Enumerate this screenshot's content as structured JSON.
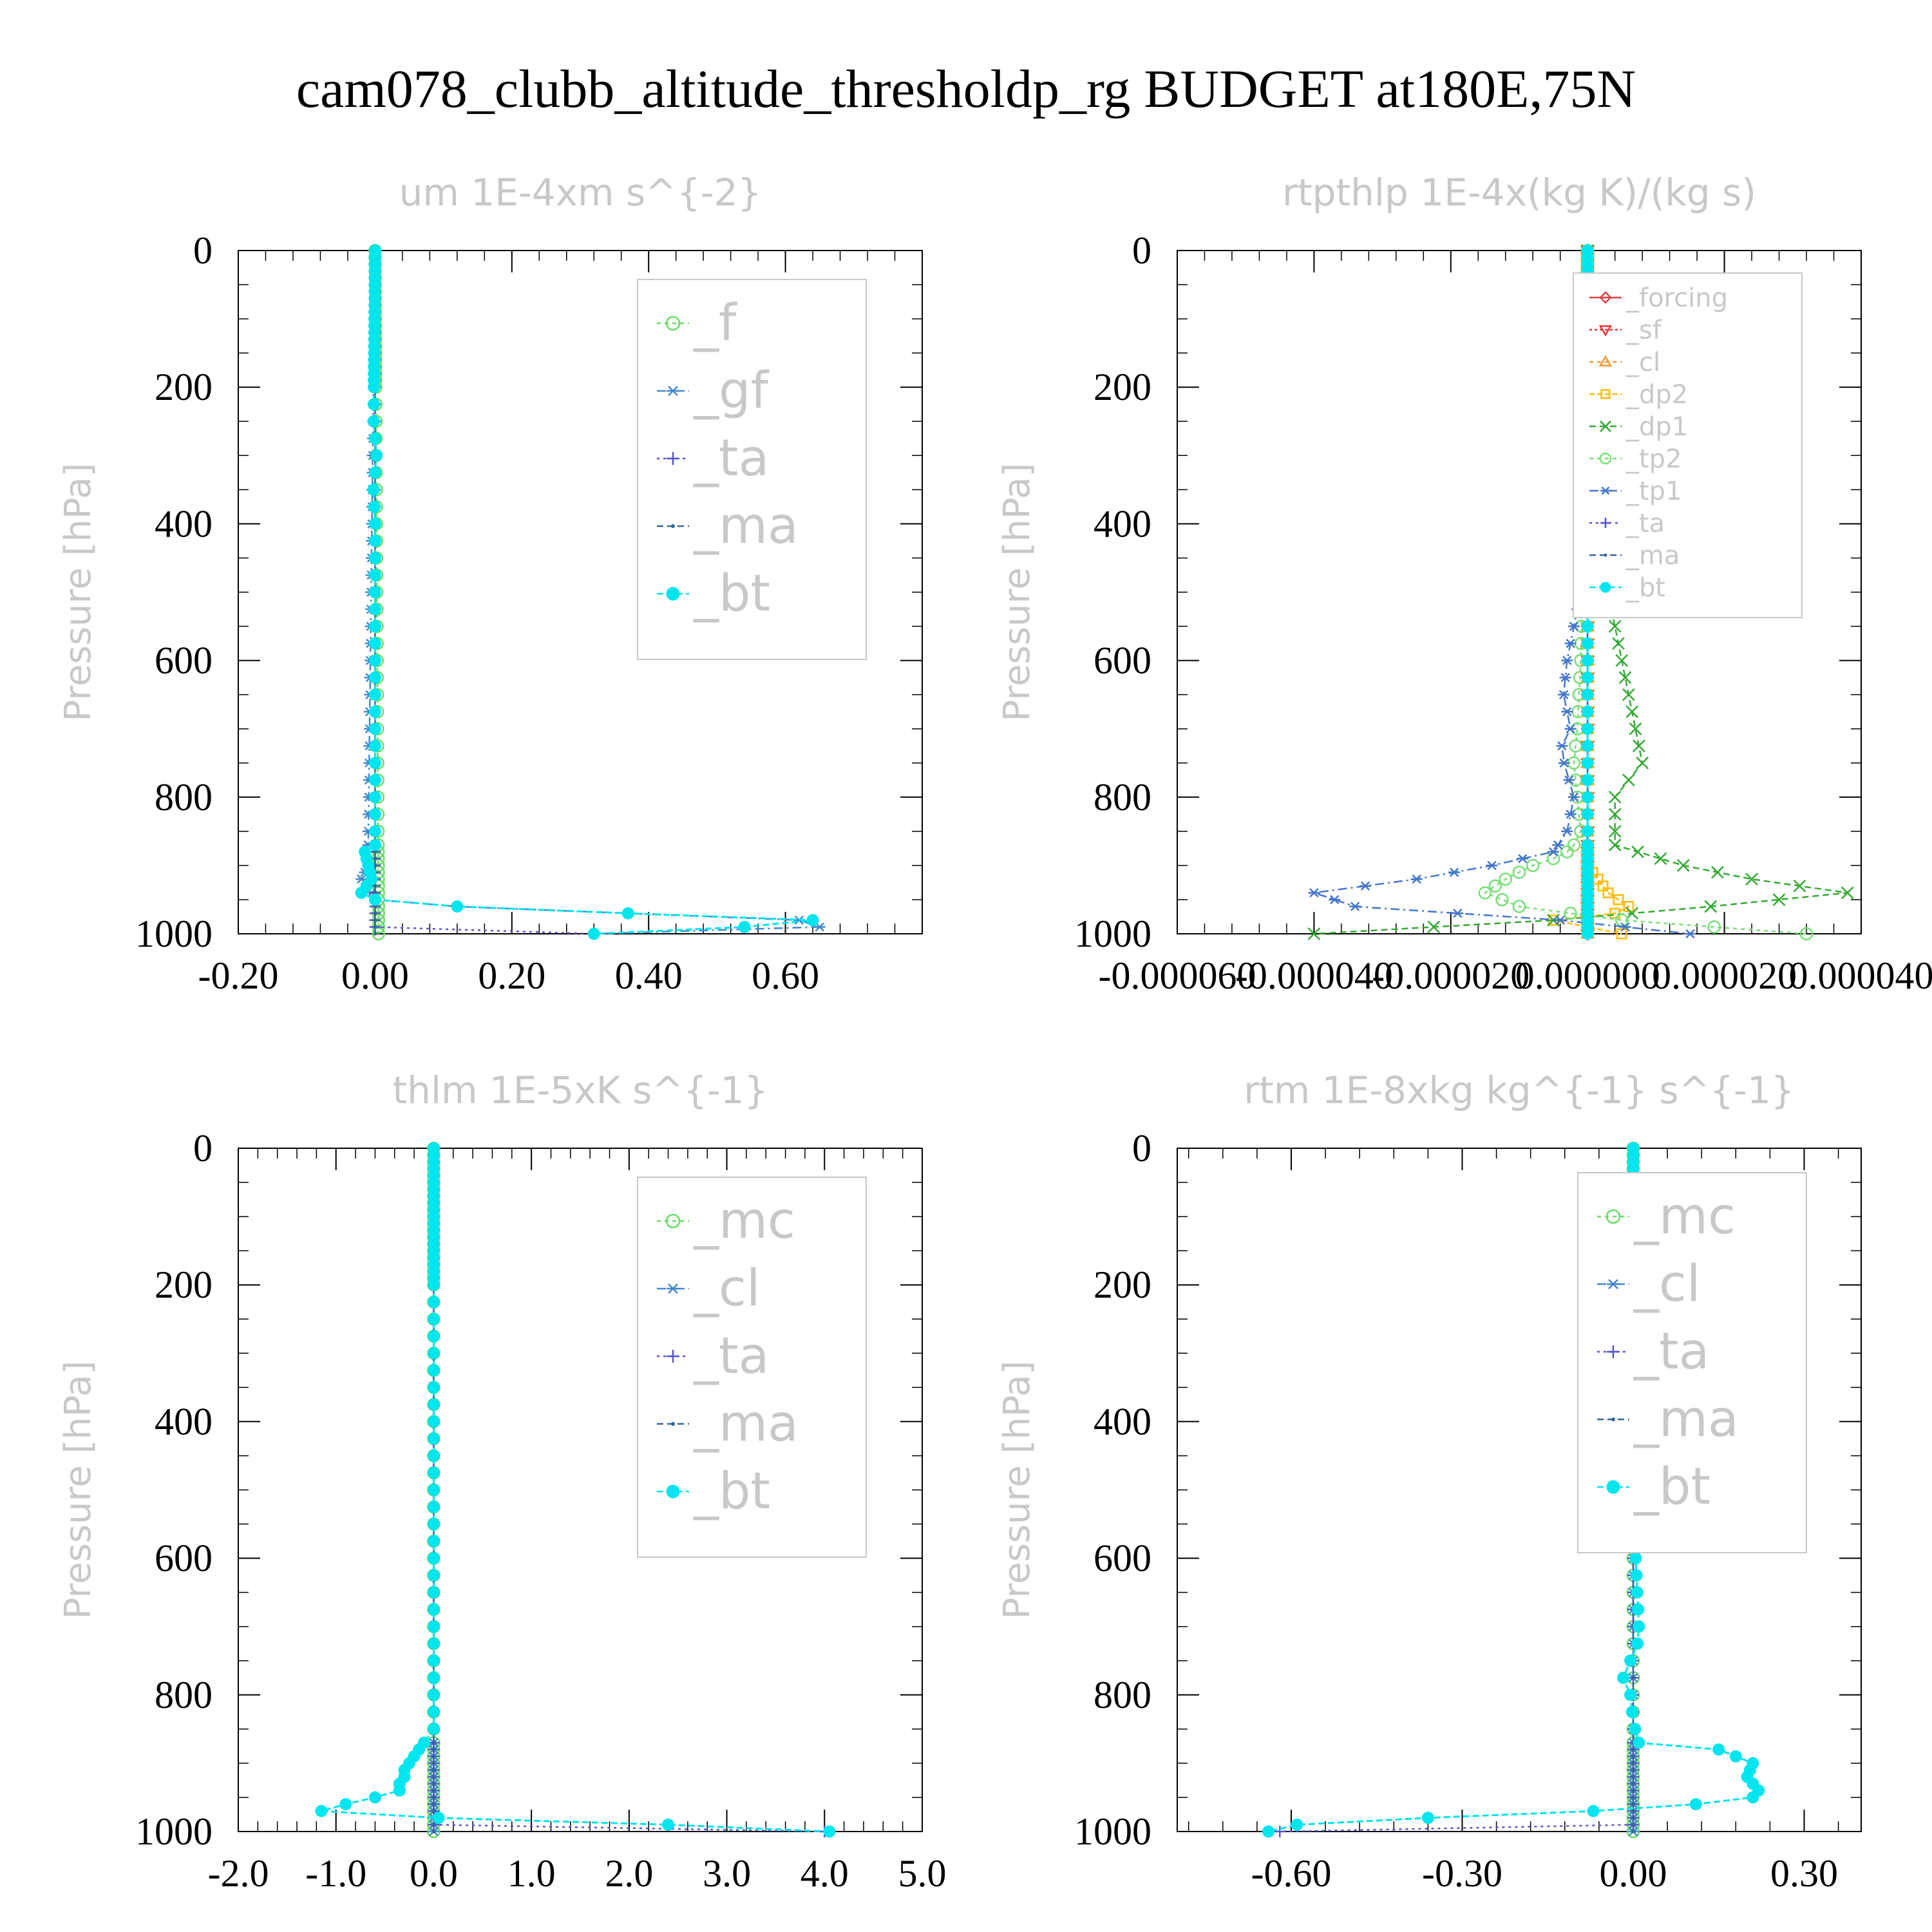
{
  "title": "cam078_clubb_altitude_thresholdp_rg  BUDGET at180E,75N",
  "chart_data": [
    {
      "type": "line",
      "title": "um  1E-4xm s^{-2}",
      "ylabel": "Pressure [hPa]",
      "ylim": [
        1000,
        0
      ],
      "yticks": [
        0,
        200,
        400,
        600,
        800,
        1000
      ],
      "yticklabels": [
        "0",
        "200",
        "400",
        "600",
        "800",
        "1000"
      ],
      "xlim": [
        -0.2,
        0.8
      ],
      "xticks": [
        -0.2,
        0.0,
        0.2,
        0.4,
        0.6
      ],
      "xticklabels": [
        "-0.20",
        "0.00",
        "0.20",
        "0.40",
        "0.60"
      ],
      "legend_placement": "top-right",
      "legend_size": "large",
      "series": [
        {
          "name": "_f",
          "color": "#66dd66",
          "marker": "circle",
          "dash": "6,6",
          "profile": {
            "p": [
              0,
              960,
              980,
              1000
            ],
            "x": [
              0,
              0.005,
              0.005,
              0.005
            ]
          }
        },
        {
          "name": "_gf",
          "color": "#4488cc",
          "marker": "asterisk",
          "dash": "14,6,3,6",
          "profile": {
            "p": [
              0,
              870,
              880,
              900,
              920,
              940,
              950,
              960,
              980,
              990,
              1000
            ],
            "x": [
              0,
              -0.01,
              -0.015,
              -0.01,
              -0.02,
              -0.005,
              0.0,
              0.12,
              0.62,
              0.65,
              0.32
            ]
          }
        },
        {
          "name": "_ta",
          "color": "#5555cc",
          "marker": "plus",
          "dash": "4,6",
          "profile": {
            "p": [
              0,
              990,
              1000
            ],
            "x": [
              0,
              0.0,
              0.32
            ]
          }
        },
        {
          "name": "_ma",
          "color": "#336699",
          "marker": "dot",
          "dash": "10,6",
          "profile": {
            "p": [
              0,
              960,
              1000
            ],
            "x": [
              0,
              0.0,
              0.0
            ]
          }
        },
        {
          "name": "_bt",
          "color": "#00e5ee",
          "marker": "bigdot",
          "dash": "10,5",
          "profile": {
            "p": [
              0,
              250,
              300,
              350,
              400,
              870,
              880,
              900,
              920,
              940,
              950,
              960,
              970,
              980,
              985,
              1000
            ],
            "x": [
              0,
              -0.002,
              0.002,
              -0.002,
              0.0,
              0.0,
              -0.015,
              -0.01,
              -0.005,
              -0.02,
              0.0,
              0.12,
              0.37,
              0.64,
              0.65,
              0.32
            ]
          }
        }
      ]
    },
    {
      "type": "line",
      "title": "rtpthlp  1E-4x(kg K)/(kg s)",
      "ylabel": "Pressure [hPa]",
      "ylim": [
        1000,
        0
      ],
      "yticks": [
        0,
        200,
        400,
        600,
        800,
        1000
      ],
      "yticklabels": [
        "0",
        "200",
        "400",
        "600",
        "800",
        "1000"
      ],
      "xlim": [
        -6e-05,
        4e-05
      ],
      "xticks": [
        -6e-05,
        -4e-05,
        -2e-05,
        0.0,
        2e-05,
        4e-05
      ],
      "xticklabels": [
        "-0.000060",
        "-0.000040",
        "-0.000020",
        "0.000000",
        "0.000020",
        "0.000040"
      ],
      "legend_placement": "top-right",
      "legend_size": "small",
      "series": [
        {
          "name": "_forcing",
          "color": "#dd4444",
          "marker": "diamond",
          "dash": "none",
          "profile": {
            "p": [
              0,
              1000
            ],
            "x": [
              0,
              0
            ]
          }
        },
        {
          "name": "_sf",
          "color": "#ee3333",
          "marker": "triangle-down",
          "dash": "4,4",
          "profile": {
            "p": [
              0,
              1000
            ],
            "x": [
              0,
              0
            ]
          }
        },
        {
          "name": "_cl",
          "color": "#ee9933",
          "marker": "triangle-up",
          "dash": "6,6",
          "profile": {
            "p": [
              0,
              1000
            ],
            "x": [
              0,
              0
            ]
          }
        },
        {
          "name": "_dp2",
          "color": "#ffbb00",
          "marker": "square",
          "dash": "8,4",
          "profile": {
            "p": [
              0,
              900,
              920,
              940,
              960,
              970,
              980,
              1000
            ],
            "x": [
              0,
              0.0,
              1.5e-06,
              3e-06,
              6e-06,
              4e-06,
              -5e-06,
              5e-06
            ]
          }
        },
        {
          "name": "_dp1",
          "color": "#33aa33",
          "marker": "x",
          "dash": "10,6",
          "profile": {
            "p": [
              0,
              300,
              400,
              500,
              600,
              700,
              750,
              800,
              870,
              900,
              920,
              940,
              960,
              980,
              1000
            ],
            "x": [
              0,
              0.0,
              1e-06,
              3e-06,
              5e-06,
              7e-06,
              8e-06,
              4e-06,
              4e-06,
              1.4e-05,
              2.4e-05,
              3.8e-05,
              1.8e-05,
              -5e-06,
              -4e-05
            ]
          }
        },
        {
          "name": "_tp2",
          "color": "#77dd77",
          "marker": "circle",
          "dash": "6,6",
          "profile": {
            "p": [
              0,
              600,
              700,
              750,
              800,
              850,
              870,
              880,
              890,
              900,
              920,
              940,
              960,
              980,
              1000
            ],
            "x": [
              0,
              -1e-06,
              -1.5e-06,
              -2e-06,
              -1.5e-06,
              -1e-06,
              -2e-06,
              -3e-06,
              -5e-06,
              -8e-06,
              -1.2e-05,
              -1.5e-05,
              -1e-05,
              5e-06,
              3.2e-05
            ]
          }
        },
        {
          "name": "_tp1",
          "color": "#4477cc",
          "marker": "asterisk",
          "dash": "14,6,3,6",
          "profile": {
            "p": [
              0,
              400,
              500,
              600,
              650,
              700,
              730,
              800,
              850,
              880,
              900,
              920,
              940,
              960,
              980,
              1000
            ],
            "x": [
              0,
              -5e-07,
              -1e-06,
              -3e-06,
              -3.5e-06,
              -2.5e-06,
              -4e-06,
              -2e-06,
              -3e-06,
              -5e-06,
              -1.4e-05,
              -2.5e-05,
              -4e-05,
              -3.4e-05,
              -4e-06,
              1.5e-05
            ]
          }
        },
        {
          "name": "_ta",
          "color": "#5555cc",
          "marker": "plus",
          "dash": "4,6",
          "profile": {
            "p": [
              0,
              1000
            ],
            "x": [
              0,
              0
            ]
          }
        },
        {
          "name": "_ma",
          "color": "#336699",
          "marker": "dot",
          "dash": "10,6",
          "profile": {
            "p": [
              0,
              1000
            ],
            "x": [
              0,
              0
            ]
          }
        },
        {
          "name": "_bt",
          "color": "#00e5ee",
          "marker": "bigdot",
          "dash": "10,5",
          "profile": {
            "p": [
              0,
              1000
            ],
            "x": [
              0,
              0
            ]
          }
        }
      ]
    },
    {
      "type": "line",
      "title": "thlm  1E-5xK s^{-1}",
      "ylabel": "Pressure [hPa]",
      "ylim": [
        1000,
        0
      ],
      "yticks": [
        0,
        200,
        400,
        600,
        800,
        1000
      ],
      "yticklabels": [
        "0",
        "200",
        "400",
        "600",
        "800",
        "1000"
      ],
      "xlim": [
        -2.0,
        5.0
      ],
      "xticks": [
        -2.0,
        -1.0,
        0.0,
        1.0,
        2.0,
        3.0,
        4.0,
        5.0
      ],
      "xticklabels": [
        "-2.0",
        "-1.0",
        "0.0",
        "1.0",
        "2.0",
        "3.0",
        "4.0",
        "5.0"
      ],
      "legend_placement": "top-right",
      "legend_size": "large",
      "series": [
        {
          "name": "_mc",
          "color": "#66dd66",
          "marker": "circle",
          "dash": "6,6",
          "profile": {
            "p": [
              0,
              1000
            ],
            "x": [
              0,
              0
            ]
          }
        },
        {
          "name": "_cl",
          "color": "#4488cc",
          "marker": "asterisk",
          "dash": "14,6,3,6",
          "profile": {
            "p": [
              0,
              1000
            ],
            "x": [
              0,
              0
            ]
          }
        },
        {
          "name": "_ta",
          "color": "#5555cc",
          "marker": "plus",
          "dash": "4,6",
          "profile": {
            "p": [
              0,
              990,
              1000
            ],
            "x": [
              0,
              0.0,
              4.0
            ]
          }
        },
        {
          "name": "_ma",
          "color": "#336699",
          "marker": "dot",
          "dash": "10,6",
          "profile": {
            "p": [
              0,
              1000
            ],
            "x": [
              0,
              0
            ]
          }
        },
        {
          "name": "_bt",
          "color": "#00e5ee",
          "marker": "bigdot",
          "dash": "10,5",
          "profile": {
            "p": [
              0,
              850,
              870,
              880,
              900,
              910,
              920,
              930,
              940,
              950,
              960,
              970,
              980,
              990,
              1000
            ],
            "x": [
              0,
              0.0,
              -0.1,
              -0.15,
              -0.25,
              -0.3,
              -0.3,
              -0.35,
              -0.35,
              -0.6,
              -0.9,
              -1.15,
              0.05,
              2.4,
              4.05
            ]
          }
        }
      ]
    },
    {
      "type": "line",
      "title": "rtm  1E-8xkg kg^{-1} s^{-1}",
      "ylabel": "Pressure [hPa]",
      "ylim": [
        1000,
        0
      ],
      "yticks": [
        0,
        200,
        400,
        600,
        800,
        1000
      ],
      "yticklabels": [
        "0",
        "200",
        "400",
        "600",
        "800",
        "1000"
      ],
      "xlim": [
        -0.8,
        0.4
      ],
      "xticks": [
        -0.6,
        -0.3,
        0.0,
        0.3
      ],
      "xticklabels": [
        "-0.60",
        "-0.30",
        "0.00",
        "0.30"
      ],
      "legend_placement": "top-right",
      "legend_size": "large",
      "series": [
        {
          "name": "_mc",
          "color": "#66dd66",
          "marker": "circle",
          "dash": "6,6",
          "profile": {
            "p": [
              0,
              1000
            ],
            "x": [
              0,
              0
            ]
          }
        },
        {
          "name": "_cl",
          "color": "#4488cc",
          "marker": "asterisk",
          "dash": "14,6,3,6",
          "profile": {
            "p": [
              0,
              1000
            ],
            "x": [
              0,
              0
            ]
          }
        },
        {
          "name": "_ta",
          "color": "#5555cc",
          "marker": "plus",
          "dash": "4,6",
          "profile": {
            "p": [
              0,
              990,
              1000
            ],
            "x": [
              0,
              0.0,
              -0.62
            ]
          }
        },
        {
          "name": "_ma",
          "color": "#336699",
          "marker": "dot",
          "dash": "10,6",
          "profile": {
            "p": [
              0,
              1000
            ],
            "x": [
              0,
              0
            ]
          }
        },
        {
          "name": "_bt",
          "color": "#00e5ee",
          "marker": "bigdot",
          "dash": "10,5",
          "profile": {
            "p": [
              0,
              240,
              260,
              280,
              300,
              450,
              470,
              490,
              520,
              700,
              720,
              760,
              780,
              800,
              840,
              870,
              880,
              900,
              920,
              940,
              950,
              960,
              970,
              980,
              990,
              1000
            ],
            "x": [
              0,
              0.0,
              0.01,
              0.005,
              0.0,
              0.0,
              -0.005,
              0.0,
              0.0,
              0.01,
              0.01,
              -0.01,
              -0.02,
              -0.005,
              0.0,
              0.01,
              0.15,
              0.21,
              0.2,
              0.22,
              0.21,
              0.11,
              -0.07,
              -0.36,
              -0.59,
              -0.64
            ]
          }
        }
      ]
    }
  ]
}
